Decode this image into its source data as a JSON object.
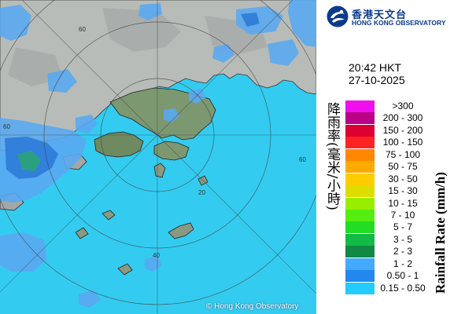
{
  "organization": {
    "name_cn": "香港天文台",
    "name_en": "HONG KONG OBSERVATORY"
  },
  "timestamp": {
    "time": "20:42 HKT",
    "date": "27-10-2025"
  },
  "legend": {
    "title_cn": "降雨率(毫米/小時)",
    "title_en": "Rainfall Rate (mm/h)",
    "items": [
      {
        "label": ">300",
        "color": "#ee11ee"
      },
      {
        "label": "200 - 300",
        "color": "#bb0088"
      },
      {
        "label": "150 - 200",
        "color": "#dd0033"
      },
      {
        "label": "100 - 150",
        "color": "#ff2222"
      },
      {
        "label": "75 - 100",
        "color": "#ff8800"
      },
      {
        "label": "50 - 75",
        "color": "#ffaa00"
      },
      {
        "label": "30 - 50",
        "color": "#ffcc00"
      },
      {
        "label": "15 - 30",
        "color": "#dddd00"
      },
      {
        "label": "10 - 15",
        "color": "#99ee00"
      },
      {
        "label": "7 - 10",
        "color": "#55ee11"
      },
      {
        "label": "5 - 7",
        "color": "#22dd22"
      },
      {
        "label": "3 - 5",
        "color": "#11bb44"
      },
      {
        "label": "2 - 3",
        "color": "#118844"
      },
      {
        "label": "1 - 2",
        "color": "#44aaff"
      },
      {
        "label": "0.50 - 1",
        "color": "#2288ee"
      },
      {
        "label": "0.15 - 0.50",
        "color": "#22ccff"
      }
    ]
  },
  "map": {
    "range_ring_labels": [
      "60",
      "60",
      "60",
      "40",
      "20"
    ],
    "copyright": "© Hong Kong Observatory",
    "colors": {
      "sea": "#33ccf0",
      "land": "#b8bcb8",
      "terrain": "#6f8a60",
      "rain_light": "#5aa8f0",
      "rain_moderate": "#2a78d8",
      "rain_heavy": "#2aa86a"
    }
  }
}
